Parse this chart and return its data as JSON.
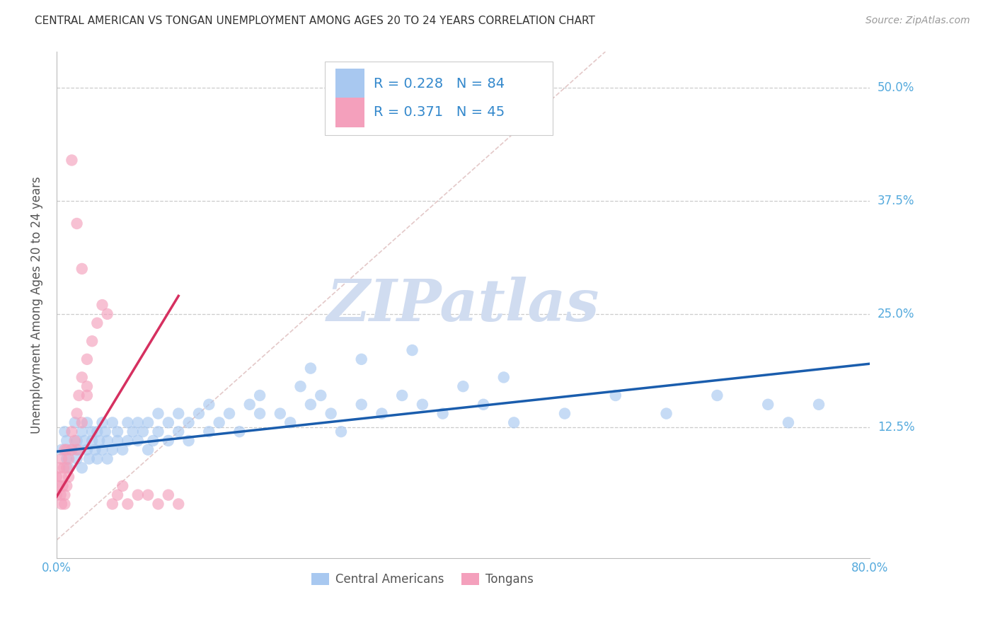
{
  "title": "CENTRAL AMERICAN VS TONGAN UNEMPLOYMENT AMONG AGES 20 TO 24 YEARS CORRELATION CHART",
  "source": "Source: ZipAtlas.com",
  "ylabel": "Unemployment Among Ages 20 to 24 years",
  "xlim": [
    0.0,
    0.8
  ],
  "ylim": [
    -0.02,
    0.54
  ],
  "blue_color": "#A8C8F0",
  "pink_color": "#F4A0BC",
  "blue_line_color": "#1A5DAD",
  "pink_line_color": "#D63060",
  "ref_line_color": "#DDBBBB",
  "grid_color": "#CCCCCC",
  "title_color": "#333333",
  "axis_label_color": "#555555",
  "tick_label_color": "#55AADD",
  "watermark_color": "#D0DCF0",
  "legend_text_color": "#3388CC",
  "R_blue": 0.228,
  "N_blue": 84,
  "R_pink": 0.371,
  "N_pink": 45,
  "blue_x": [
    0.005,
    0.008,
    0.01,
    0.01,
    0.012,
    0.015,
    0.018,
    0.02,
    0.02,
    0.022,
    0.025,
    0.025,
    0.028,
    0.03,
    0.03,
    0.032,
    0.035,
    0.035,
    0.038,
    0.04,
    0.04,
    0.042,
    0.045,
    0.045,
    0.048,
    0.05,
    0.05,
    0.055,
    0.055,
    0.06,
    0.06,
    0.065,
    0.07,
    0.07,
    0.075,
    0.08,
    0.08,
    0.085,
    0.09,
    0.09,
    0.095,
    0.1,
    0.1,
    0.11,
    0.11,
    0.12,
    0.12,
    0.13,
    0.13,
    0.14,
    0.15,
    0.15,
    0.16,
    0.17,
    0.18,
    0.19,
    0.2,
    0.2,
    0.22,
    0.23,
    0.24,
    0.25,
    0.26,
    0.27,
    0.28,
    0.3,
    0.32,
    0.34,
    0.36,
    0.38,
    0.4,
    0.42,
    0.44,
    0.5,
    0.55,
    0.6,
    0.65,
    0.7,
    0.72,
    0.75,
    0.3,
    0.35,
    0.25,
    0.45
  ],
  "blue_y": [
    0.1,
    0.12,
    0.09,
    0.11,
    0.08,
    0.1,
    0.13,
    0.09,
    0.11,
    0.1,
    0.12,
    0.08,
    0.11,
    0.1,
    0.13,
    0.09,
    0.11,
    0.12,
    0.1,
    0.12,
    0.09,
    0.11,
    0.13,
    0.1,
    0.12,
    0.09,
    0.11,
    0.1,
    0.13,
    0.11,
    0.12,
    0.1,
    0.13,
    0.11,
    0.12,
    0.11,
    0.13,
    0.12,
    0.1,
    0.13,
    0.11,
    0.12,
    0.14,
    0.11,
    0.13,
    0.12,
    0.14,
    0.13,
    0.11,
    0.14,
    0.12,
    0.15,
    0.13,
    0.14,
    0.12,
    0.15,
    0.14,
    0.16,
    0.14,
    0.13,
    0.17,
    0.15,
    0.16,
    0.14,
    0.12,
    0.15,
    0.14,
    0.16,
    0.15,
    0.14,
    0.17,
    0.15,
    0.18,
    0.14,
    0.16,
    0.14,
    0.16,
    0.15,
    0.13,
    0.15,
    0.2,
    0.21,
    0.19,
    0.13
  ],
  "pink_x": [
    0.0,
    0.0,
    0.002,
    0.003,
    0.004,
    0.005,
    0.005,
    0.006,
    0.007,
    0.008,
    0.008,
    0.01,
    0.01,
    0.01,
    0.012,
    0.012,
    0.015,
    0.015,
    0.018,
    0.02,
    0.02,
    0.022,
    0.025,
    0.025,
    0.03,
    0.03,
    0.035,
    0.04,
    0.045,
    0.05,
    0.055,
    0.06,
    0.065,
    0.07,
    0.08,
    0.09,
    0.1,
    0.11,
    0.12,
    0.015,
    0.02,
    0.025,
    0.005,
    0.008,
    0.03
  ],
  "pink_y": [
    0.05,
    0.07,
    0.06,
    0.08,
    0.05,
    0.09,
    0.07,
    0.06,
    0.08,
    0.1,
    0.05,
    0.08,
    0.1,
    0.06,
    0.09,
    0.07,
    0.12,
    0.1,
    0.11,
    0.14,
    0.1,
    0.16,
    0.18,
    0.13,
    0.2,
    0.17,
    0.22,
    0.24,
    0.26,
    0.25,
    0.04,
    0.05,
    0.06,
    0.04,
    0.05,
    0.05,
    0.04,
    0.05,
    0.04,
    0.42,
    0.35,
    0.3,
    0.04,
    0.04,
    0.16
  ],
  "blue_line_x0": 0.0,
  "blue_line_x1": 0.8,
  "blue_line_y0": 0.098,
  "blue_line_y1": 0.195,
  "pink_line_x0": 0.0,
  "pink_line_x1": 0.12,
  "pink_line_y0": 0.048,
  "pink_line_y1": 0.27,
  "ref_line_x0": 0.0,
  "ref_line_x1": 0.54,
  "ref_line_y0": 0.0,
  "ref_line_y1": 0.54
}
